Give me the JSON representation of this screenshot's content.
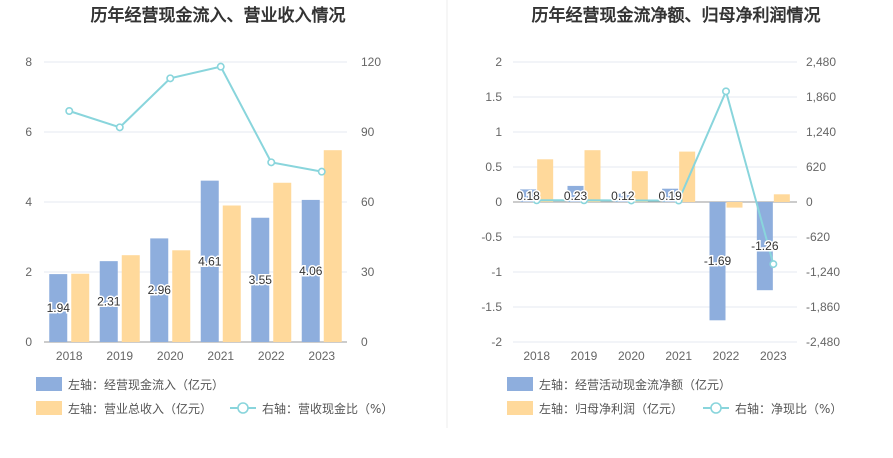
{
  "colors": {
    "bar1": "#8eaedd",
    "bar2": "#ffd99b",
    "line": "#89d5dc",
    "grid": "#e6e9f0",
    "axis": "#999999",
    "divider": "#eeeeee"
  },
  "chart_data": [
    {
      "type": "bar+line",
      "title": "历年经营现金流入、营业收入情况",
      "categories": [
        "2018",
        "2019",
        "2020",
        "2021",
        "2022",
        "2023"
      ],
      "left_axis": {
        "ticks": [
          0,
          2,
          4,
          6,
          8
        ],
        "ylim": [
          0,
          8
        ]
      },
      "right_axis": {
        "ticks": [
          0,
          30,
          60,
          90,
          120
        ],
        "ylim": [
          0,
          120
        ]
      },
      "series": [
        {
          "name": "经营现金流入",
          "axis": "left",
          "kind": "bar",
          "values": [
            1.94,
            2.31,
            2.96,
            4.61,
            3.55,
            4.06
          ],
          "labels": [
            "1.94",
            "2.31",
            "2.96",
            "4.61",
            "3.55",
            "4.06"
          ]
        },
        {
          "name": "营业总收入",
          "axis": "left",
          "kind": "bar",
          "values": [
            1.95,
            2.48,
            2.62,
            3.9,
            4.55,
            5.48
          ]
        },
        {
          "name": "营收现金比",
          "axis": "right",
          "kind": "line",
          "values": [
            99,
            92,
            113,
            118,
            77,
            73
          ]
        }
      ],
      "legend": [
        "左轴：经营现金流入（亿元）",
        "左轴：营业总收入（亿元）",
        "右轴：营收现金比（%）"
      ]
    },
    {
      "type": "bar+line",
      "title": "历年经营现金流净额、归母净利润情况",
      "categories": [
        "2018",
        "2019",
        "2020",
        "2021",
        "2022",
        "2023"
      ],
      "left_axis": {
        "ticks": [
          2,
          1.5,
          1,
          0.5,
          0,
          -0.5,
          -1,
          -1.5,
          -2
        ],
        "ylim": [
          -2,
          2
        ]
      },
      "right_axis": {
        "ticks": [
          "2,480",
          "1,860",
          "1,240",
          "620",
          "0",
          "-620",
          "-1,240",
          "-1,860",
          "-2,480"
        ],
        "ylim": [
          -2480,
          2480
        ]
      },
      "series": [
        {
          "name": "经营活动现金流净额",
          "axis": "left",
          "kind": "bar",
          "values": [
            0.18,
            0.23,
            0.12,
            0.19,
            -1.69,
            -1.26
          ],
          "labels": [
            "0.18",
            "0.23",
            "0.12",
            "0.19",
            "-1.69",
            "-1.26"
          ]
        },
        {
          "name": "归母净利润",
          "axis": "left",
          "kind": "bar",
          "values": [
            0.61,
            0.74,
            0.44,
            0.72,
            -0.08,
            0.11
          ]
        },
        {
          "name": "净现比",
          "axis": "right",
          "kind": "line",
          "values": [
            30,
            31,
            27,
            26,
            1960,
            -1100
          ]
        }
      ],
      "legend": [
        "左轴：经营活动现金流净额（亿元）",
        "左轴：归母净利润（亿元）",
        "右轴：净现比（%）"
      ]
    }
  ]
}
